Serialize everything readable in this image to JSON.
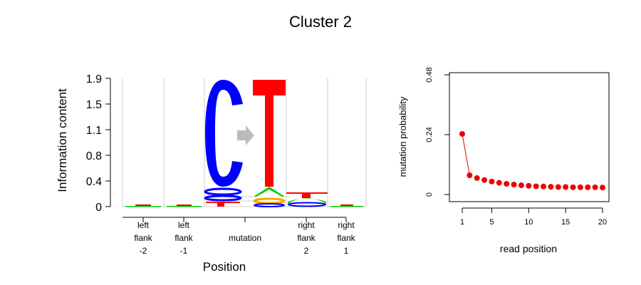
{
  "title": "Cluster 2",
  "chart_data": [
    {
      "type": "sequence-logo",
      "ylabel": "Information content",
      "xlabel": "Position",
      "yticks": [
        "0",
        "0.4",
        "0.8",
        "1.1",
        "1.5",
        "1.9"
      ],
      "ylim": [
        0,
        1.9
      ],
      "positions": [
        {
          "lines": [
            "left",
            "flank",
            "-2"
          ]
        },
        {
          "lines": [
            "left",
            "flank",
            "-1"
          ]
        },
        {
          "lines": [
            "mutation"
          ]
        },
        {
          "lines": [
            "right",
            "flank",
            "2"
          ]
        },
        {
          "lines": [
            "right",
            "flank",
            "1"
          ]
        }
      ],
      "mutation": {
        "from": "C",
        "to": "T"
      },
      "colors": {
        "C": "#0000ff",
        "T": "#ff0000",
        "A": "#00cc00",
        "G": "#ffa500",
        "arrow": "#bbbbbb",
        "divider": "#cccccc"
      }
    },
    {
      "type": "scatter",
      "xlabel": "read position",
      "ylabel": "mutation probability",
      "xticks": [
        "1",
        "5",
        "10",
        "15",
        "20"
      ],
      "yticks": [
        "0",
        "0.24",
        "0.48"
      ],
      "xlim": [
        1,
        20
      ],
      "ylim": [
        0,
        0.48
      ],
      "x": [
        1,
        2,
        3,
        4,
        5,
        6,
        7,
        8,
        9,
        10,
        11,
        12,
        13,
        14,
        15,
        16,
        17,
        18,
        19,
        20
      ],
      "y": [
        0.243,
        0.077,
        0.066,
        0.058,
        0.052,
        0.047,
        0.043,
        0.04,
        0.037,
        0.035,
        0.033,
        0.032,
        0.031,
        0.03,
        0.03,
        0.029,
        0.029,
        0.029,
        0.029,
        0.028
      ],
      "point_color": "#ee0000",
      "connect_first_two": true
    }
  ]
}
